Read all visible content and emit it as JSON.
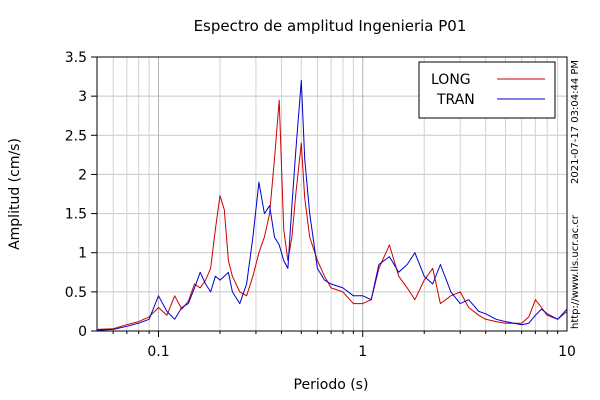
{
  "chart_data": {
    "type": "line",
    "title": "Espectro de amplitud Ingenieria P01",
    "xlabel": "Periodo (s)",
    "ylabel": "Amplitud (cm/s)",
    "x_scale": "log",
    "xlim": [
      0.05,
      10
    ],
    "ylim": [
      0,
      3.5
    ],
    "x_ticks": [
      0.1,
      1,
      10
    ],
    "x_tick_labels": [
      "0.1",
      "1",
      "10"
    ],
    "y_ticks": [
      0,
      0.5,
      1,
      1.5,
      2,
      2.5,
      3,
      3.5
    ],
    "y_tick_labels": [
      "0",
      "0.5",
      "1",
      "1.5",
      "2",
      "2.5",
      "3",
      "3.5"
    ],
    "grid": true,
    "legend_position": "top-right",
    "side_text_timestamp": "2021-07-17 03:04:44 PM",
    "side_text_url": "http://www.lis.ucr.ac.cr",
    "colors": {
      "LONG": "#cc0000",
      "TRAN": "#0000cc"
    },
    "series": [
      {
        "name": "LONG",
        "x": [
          0.05,
          0.06,
          0.07,
          0.08,
          0.09,
          0.1,
          0.11,
          0.12,
          0.13,
          0.14,
          0.15,
          0.16,
          0.17,
          0.18,
          0.19,
          0.2,
          0.21,
          0.22,
          0.23,
          0.25,
          0.27,
          0.29,
          0.31,
          0.33,
          0.35,
          0.37,
          0.39,
          0.41,
          0.43,
          0.45,
          0.47,
          0.5,
          0.52,
          0.55,
          0.6,
          0.65,
          0.7,
          0.8,
          0.9,
          1.0,
          1.1,
          1.2,
          1.35,
          1.5,
          1.65,
          1.8,
          2.0,
          2.2,
          2.4,
          2.7,
          3.0,
          3.3,
          3.7,
          4.0,
          4.5,
          5.0,
          5.5,
          6.0,
          6.5,
          7.0,
          7.5,
          8.0,
          9.0,
          10.0
        ],
        "values": [
          0.02,
          0.03,
          0.08,
          0.12,
          0.18,
          0.3,
          0.2,
          0.45,
          0.28,
          0.38,
          0.6,
          0.55,
          0.65,
          0.8,
          1.3,
          1.73,
          1.55,
          0.9,
          0.7,
          0.5,
          0.45,
          0.7,
          1.0,
          1.2,
          1.5,
          2.2,
          2.95,
          1.3,
          0.9,
          1.2,
          1.75,
          2.4,
          1.7,
          1.2,
          0.9,
          0.7,
          0.55,
          0.5,
          0.35,
          0.35,
          0.4,
          0.8,
          1.1,
          0.7,
          0.55,
          0.4,
          0.65,
          0.8,
          0.35,
          0.45,
          0.5,
          0.3,
          0.2,
          0.15,
          0.12,
          0.1,
          0.1,
          0.1,
          0.18,
          0.4,
          0.3,
          0.2,
          0.15,
          0.25
        ]
      },
      {
        "name": "TRAN",
        "x": [
          0.05,
          0.06,
          0.07,
          0.08,
          0.09,
          0.1,
          0.11,
          0.12,
          0.13,
          0.14,
          0.15,
          0.16,
          0.17,
          0.18,
          0.19,
          0.2,
          0.21,
          0.22,
          0.23,
          0.25,
          0.27,
          0.29,
          0.31,
          0.33,
          0.35,
          0.37,
          0.39,
          0.41,
          0.43,
          0.45,
          0.47,
          0.5,
          0.52,
          0.55,
          0.6,
          0.65,
          0.7,
          0.8,
          0.9,
          1.0,
          1.1,
          1.2,
          1.35,
          1.5,
          1.65,
          1.8,
          2.0,
          2.2,
          2.4,
          2.7,
          3.0,
          3.3,
          3.7,
          4.0,
          4.5,
          5.0,
          5.5,
          6.0,
          6.5,
          7.0,
          7.5,
          8.0,
          9.0,
          10.0
        ],
        "values": [
          0.01,
          0.02,
          0.06,
          0.1,
          0.15,
          0.45,
          0.25,
          0.15,
          0.3,
          0.35,
          0.55,
          0.75,
          0.6,
          0.5,
          0.7,
          0.65,
          0.7,
          0.75,
          0.5,
          0.35,
          0.6,
          1.2,
          1.9,
          1.5,
          1.6,
          1.2,
          1.1,
          0.9,
          0.8,
          1.6,
          2.3,
          3.2,
          2.2,
          1.5,
          0.8,
          0.65,
          0.6,
          0.55,
          0.45,
          0.45,
          0.4,
          0.85,
          0.95,
          0.75,
          0.85,
          1.0,
          0.7,
          0.6,
          0.85,
          0.5,
          0.35,
          0.4,
          0.25,
          0.22,
          0.15,
          0.12,
          0.1,
          0.08,
          0.1,
          0.2,
          0.28,
          0.22,
          0.15,
          0.28
        ]
      }
    ]
  }
}
